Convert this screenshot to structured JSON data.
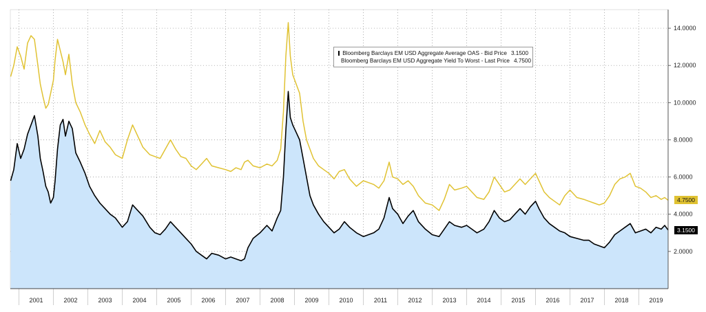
{
  "chart_data": {
    "type": "area",
    "title": "",
    "xlabel": "",
    "ylabel": "",
    "x_range": [
      2000.75,
      2019.85
    ],
    "ylim": [
      0,
      15
    ],
    "y_ticks": [
      2,
      4,
      6,
      8,
      10,
      12,
      14
    ],
    "y_tick_labels": [
      "2.0000",
      "4.0000",
      "6.0000",
      "8.0000",
      "10.0000",
      "12.0000",
      "14.0000"
    ],
    "x_tick_labels": [
      "2001",
      "2002",
      "2003",
      "2004",
      "2005",
      "2006",
      "2007",
      "2008",
      "2009",
      "2010",
      "2011",
      "2012",
      "2013",
      "2014",
      "2015",
      "2016",
      "2017",
      "2018",
      "2019"
    ],
    "grid": true,
    "legend_position": "top-center",
    "series": [
      {
        "name": "Bloomberg Barclays EM USD Aggregate Average OAS - Bid Price",
        "last_value": "3.1500",
        "color": "#000000",
        "fill": "#cce5fb",
        "points": [
          [
            2000.76,
            5.8
          ],
          [
            2000.85,
            6.4
          ],
          [
            2000.95,
            7.8
          ],
          [
            2001.05,
            7.0
          ],
          [
            2001.15,
            7.5
          ],
          [
            2001.25,
            8.3
          ],
          [
            2001.35,
            8.8
          ],
          [
            2001.45,
            9.3
          ],
          [
            2001.55,
            8.2
          ],
          [
            2001.62,
            7.0
          ],
          [
            2001.7,
            6.3
          ],
          [
            2001.78,
            5.5
          ],
          [
            2001.85,
            5.2
          ],
          [
            2001.92,
            4.6
          ],
          [
            2002.0,
            4.9
          ],
          [
            2002.05,
            5.8
          ],
          [
            2002.12,
            7.5
          ],
          [
            2002.2,
            8.8
          ],
          [
            2002.28,
            9.1
          ],
          [
            2002.35,
            8.2
          ],
          [
            2002.45,
            9.0
          ],
          [
            2002.55,
            8.6
          ],
          [
            2002.65,
            7.3
          ],
          [
            2002.78,
            6.8
          ],
          [
            2002.92,
            6.2
          ],
          [
            2003.05,
            5.5
          ],
          [
            2003.2,
            5.0
          ],
          [
            2003.35,
            4.6
          ],
          [
            2003.5,
            4.3
          ],
          [
            2003.65,
            4.0
          ],
          [
            2003.8,
            3.8
          ],
          [
            2004.0,
            3.3
          ],
          [
            2004.15,
            3.6
          ],
          [
            2004.3,
            4.5
          ],
          [
            2004.45,
            4.2
          ],
          [
            2004.6,
            3.9
          ],
          [
            2004.8,
            3.3
          ],
          [
            2004.95,
            3.0
          ],
          [
            2005.1,
            2.9
          ],
          [
            2005.25,
            3.2
          ],
          [
            2005.4,
            3.6
          ],
          [
            2005.55,
            3.3
          ],
          [
            2005.7,
            3.0
          ],
          [
            2005.85,
            2.7
          ],
          [
            2006.0,
            2.4
          ],
          [
            2006.15,
            2.0
          ],
          [
            2006.3,
            1.8
          ],
          [
            2006.45,
            1.6
          ],
          [
            2006.6,
            1.9
          ],
          [
            2006.8,
            1.8
          ],
          [
            2007.0,
            1.6
          ],
          [
            2007.15,
            1.7
          ],
          [
            2007.3,
            1.6
          ],
          [
            2007.45,
            1.5
          ],
          [
            2007.55,
            1.6
          ],
          [
            2007.65,
            2.2
          ],
          [
            2007.8,
            2.7
          ],
          [
            2008.0,
            3.0
          ],
          [
            2008.2,
            3.4
          ],
          [
            2008.35,
            3.1
          ],
          [
            2008.5,
            3.8
          ],
          [
            2008.6,
            4.2
          ],
          [
            2008.68,
            6.0
          ],
          [
            2008.75,
            8.5
          ],
          [
            2008.82,
            10.6
          ],
          [
            2008.88,
            9.2
          ],
          [
            2008.95,
            8.8
          ],
          [
            2009.05,
            8.4
          ],
          [
            2009.15,
            8.0
          ],
          [
            2009.25,
            7.0
          ],
          [
            2009.35,
            6.0
          ],
          [
            2009.45,
            5.0
          ],
          [
            2009.55,
            4.5
          ],
          [
            2009.7,
            4.0
          ],
          [
            2009.85,
            3.6
          ],
          [
            2010.0,
            3.3
          ],
          [
            2010.15,
            3.0
          ],
          [
            2010.3,
            3.2
          ],
          [
            2010.45,
            3.6
          ],
          [
            2010.6,
            3.3
          ],
          [
            2010.8,
            3.0
          ],
          [
            2011.0,
            2.8
          ],
          [
            2011.15,
            2.9
          ],
          [
            2011.3,
            3.0
          ],
          [
            2011.45,
            3.2
          ],
          [
            2011.6,
            3.8
          ],
          [
            2011.75,
            4.9
          ],
          [
            2011.85,
            4.3
          ],
          [
            2012.0,
            4.0
          ],
          [
            2012.15,
            3.5
          ],
          [
            2012.3,
            3.9
          ],
          [
            2012.45,
            4.2
          ],
          [
            2012.6,
            3.6
          ],
          [
            2012.8,
            3.2
          ],
          [
            2013.0,
            2.9
          ],
          [
            2013.2,
            2.8
          ],
          [
            2013.35,
            3.2
          ],
          [
            2013.5,
            3.6
          ],
          [
            2013.65,
            3.4
          ],
          [
            2013.85,
            3.3
          ],
          [
            2014.0,
            3.4
          ],
          [
            2014.15,
            3.2
          ],
          [
            2014.3,
            3.0
          ],
          [
            2014.5,
            3.2
          ],
          [
            2014.65,
            3.6
          ],
          [
            2014.8,
            4.2
          ],
          [
            2014.95,
            3.8
          ],
          [
            2015.1,
            3.6
          ],
          [
            2015.25,
            3.7
          ],
          [
            2015.4,
            4.0
          ],
          [
            2015.55,
            4.3
          ],
          [
            2015.7,
            4.0
          ],
          [
            2015.85,
            4.4
          ],
          [
            2016.0,
            4.7
          ],
          [
            2016.1,
            4.3
          ],
          [
            2016.25,
            3.8
          ],
          [
            2016.4,
            3.5
          ],
          [
            2016.55,
            3.3
          ],
          [
            2016.7,
            3.1
          ],
          [
            2016.85,
            3.0
          ],
          [
            2017.0,
            2.8
          ],
          [
            2017.2,
            2.7
          ],
          [
            2017.4,
            2.6
          ],
          [
            2017.55,
            2.6
          ],
          [
            2017.7,
            2.4
          ],
          [
            2017.85,
            2.3
          ],
          [
            2018.0,
            2.2
          ],
          [
            2018.15,
            2.5
          ],
          [
            2018.3,
            2.9
          ],
          [
            2018.45,
            3.1
          ],
          [
            2018.6,
            3.3
          ],
          [
            2018.75,
            3.5
          ],
          [
            2018.9,
            3.0
          ],
          [
            2019.05,
            3.1
          ],
          [
            2019.2,
            3.2
          ],
          [
            2019.35,
            3.0
          ],
          [
            2019.5,
            3.3
          ],
          [
            2019.65,
            3.2
          ],
          [
            2019.75,
            3.4
          ],
          [
            2019.85,
            3.15
          ]
        ]
      },
      {
        "name": "Bloomberg Barclays EM USD Aggregate Yield To Worst - Last Price",
        "last_value": "4.7500",
        "color": "#e0c232",
        "points": [
          [
            2000.76,
            11.4
          ],
          [
            2000.85,
            12.0
          ],
          [
            2000.95,
            13.0
          ],
          [
            2001.05,
            12.5
          ],
          [
            2001.15,
            11.8
          ],
          [
            2001.25,
            13.2
          ],
          [
            2001.35,
            13.6
          ],
          [
            2001.45,
            13.4
          ],
          [
            2001.55,
            12.0
          ],
          [
            2001.62,
            11.0
          ],
          [
            2001.7,
            10.3
          ],
          [
            2001.78,
            9.7
          ],
          [
            2001.85,
            9.9
          ],
          [
            2001.92,
            10.5
          ],
          [
            2002.0,
            11.2
          ],
          [
            2002.05,
            12.3
          ],
          [
            2002.12,
            13.4
          ],
          [
            2002.2,
            12.8
          ],
          [
            2002.28,
            12.2
          ],
          [
            2002.35,
            11.5
          ],
          [
            2002.45,
            12.6
          ],
          [
            2002.55,
            11.0
          ],
          [
            2002.65,
            10.0
          ],
          [
            2002.78,
            9.5
          ],
          [
            2002.92,
            8.8
          ],
          [
            2003.05,
            8.3
          ],
          [
            2003.2,
            7.8
          ],
          [
            2003.35,
            8.5
          ],
          [
            2003.5,
            7.9
          ],
          [
            2003.65,
            7.6
          ],
          [
            2003.8,
            7.2
          ],
          [
            2004.0,
            7.0
          ],
          [
            2004.15,
            8.0
          ],
          [
            2004.3,
            8.8
          ],
          [
            2004.45,
            8.2
          ],
          [
            2004.6,
            7.6
          ],
          [
            2004.8,
            7.2
          ],
          [
            2004.95,
            7.1
          ],
          [
            2005.1,
            7.0
          ],
          [
            2005.25,
            7.5
          ],
          [
            2005.4,
            8.0
          ],
          [
            2005.55,
            7.5
          ],
          [
            2005.7,
            7.1
          ],
          [
            2005.85,
            7.0
          ],
          [
            2006.0,
            6.6
          ],
          [
            2006.15,
            6.4
          ],
          [
            2006.3,
            6.7
          ],
          [
            2006.45,
            7.0
          ],
          [
            2006.6,
            6.6
          ],
          [
            2006.8,
            6.5
          ],
          [
            2007.0,
            6.4
          ],
          [
            2007.15,
            6.3
          ],
          [
            2007.3,
            6.5
          ],
          [
            2007.45,
            6.4
          ],
          [
            2007.55,
            6.8
          ],
          [
            2007.65,
            6.9
          ],
          [
            2007.8,
            6.6
          ],
          [
            2008.0,
            6.5
          ],
          [
            2008.2,
            6.7
          ],
          [
            2008.35,
            6.6
          ],
          [
            2008.5,
            6.9
          ],
          [
            2008.6,
            7.5
          ],
          [
            2008.68,
            9.5
          ],
          [
            2008.75,
            12.5
          ],
          [
            2008.82,
            14.3
          ],
          [
            2008.88,
            12.5
          ],
          [
            2008.95,
            11.5
          ],
          [
            2009.05,
            11.0
          ],
          [
            2009.15,
            10.5
          ],
          [
            2009.25,
            9.0
          ],
          [
            2009.35,
            8.0
          ],
          [
            2009.45,
            7.5
          ],
          [
            2009.55,
            7.0
          ],
          [
            2009.7,
            6.6
          ],
          [
            2009.85,
            6.4
          ],
          [
            2010.0,
            6.2
          ],
          [
            2010.15,
            5.9
          ],
          [
            2010.3,
            6.3
          ],
          [
            2010.45,
            6.4
          ],
          [
            2010.6,
            5.9
          ],
          [
            2010.8,
            5.5
          ],
          [
            2011.0,
            5.8
          ],
          [
            2011.15,
            5.7
          ],
          [
            2011.3,
            5.6
          ],
          [
            2011.45,
            5.4
          ],
          [
            2011.6,
            5.8
          ],
          [
            2011.75,
            6.8
          ],
          [
            2011.85,
            6.0
          ],
          [
            2012.0,
            5.9
          ],
          [
            2012.15,
            5.6
          ],
          [
            2012.3,
            5.8
          ],
          [
            2012.45,
            5.5
          ],
          [
            2012.6,
            5.0
          ],
          [
            2012.8,
            4.6
          ],
          [
            2013.0,
            4.5
          ],
          [
            2013.2,
            4.2
          ],
          [
            2013.35,
            4.8
          ],
          [
            2013.5,
            5.6
          ],
          [
            2013.65,
            5.3
          ],
          [
            2013.85,
            5.4
          ],
          [
            2014.0,
            5.5
          ],
          [
            2014.15,
            5.2
          ],
          [
            2014.3,
            4.9
          ],
          [
            2014.5,
            4.8
          ],
          [
            2014.65,
            5.2
          ],
          [
            2014.8,
            6.0
          ],
          [
            2014.95,
            5.6
          ],
          [
            2015.1,
            5.2
          ],
          [
            2015.25,
            5.3
          ],
          [
            2015.4,
            5.6
          ],
          [
            2015.55,
            5.9
          ],
          [
            2015.7,
            5.6
          ],
          [
            2015.85,
            5.9
          ],
          [
            2016.0,
            6.2
          ],
          [
            2016.1,
            5.8
          ],
          [
            2016.25,
            5.2
          ],
          [
            2016.4,
            4.9
          ],
          [
            2016.55,
            4.7
          ],
          [
            2016.7,
            4.5
          ],
          [
            2016.85,
            5.0
          ],
          [
            2017.0,
            5.3
          ],
          [
            2017.2,
            4.9
          ],
          [
            2017.4,
            4.8
          ],
          [
            2017.55,
            4.7
          ],
          [
            2017.7,
            4.6
          ],
          [
            2017.85,
            4.5
          ],
          [
            2018.0,
            4.6
          ],
          [
            2018.15,
            5.0
          ],
          [
            2018.3,
            5.6
          ],
          [
            2018.45,
            5.9
          ],
          [
            2018.6,
            6.0
          ],
          [
            2018.75,
            6.2
          ],
          [
            2018.9,
            5.5
          ],
          [
            2019.05,
            5.4
          ],
          [
            2019.2,
            5.2
          ],
          [
            2019.35,
            4.9
          ],
          [
            2019.5,
            5.0
          ],
          [
            2019.65,
            4.8
          ],
          [
            2019.75,
            4.9
          ],
          [
            2019.85,
            4.75
          ]
        ]
      }
    ]
  }
}
